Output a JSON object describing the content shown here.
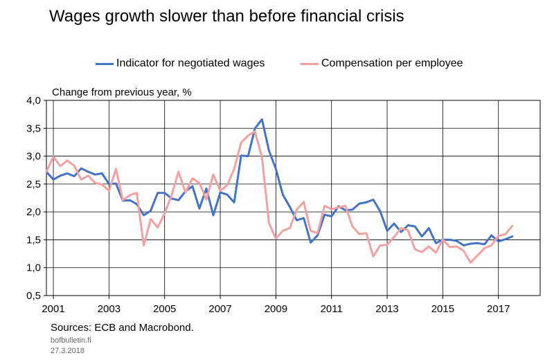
{
  "title": "Wages growth slower than before financial crisis",
  "source": "Sources: ECB and Macrobond.",
  "site": "bofbulletin.fi",
  "date": "27.3.2018",
  "chart_data": {
    "type": "line",
    "title": "Wages growth slower than before financial crisis",
    "ylabel": "Change from previous year, %",
    "xlabel": "",
    "ylim": [
      0.5,
      4.0
    ],
    "xlim": [
      2000.75,
      2018.5
    ],
    "y_ticks": [
      "0,5",
      "1,0",
      "1,5",
      "2,0",
      "2,5",
      "3,0",
      "3,5",
      "4,0"
    ],
    "x_ticks": [
      "2001",
      "2003",
      "2005",
      "2007",
      "2009",
      "2011",
      "2013",
      "2015",
      "2017"
    ],
    "grid": true,
    "legend_position": "top",
    "series": [
      {
        "name": "Indicator for negotiated wages",
        "color": "#4472C4",
        "x": [
          2000.75,
          2001,
          2001.25,
          2001.5,
          2001.75,
          2002,
          2002.25,
          2002.5,
          2002.75,
          2003,
          2003.25,
          2003.5,
          2003.75,
          2004,
          2004.25,
          2004.5,
          2004.75,
          2005,
          2005.25,
          2005.5,
          2005.75,
          2006,
          2006.25,
          2006.5,
          2006.75,
          2007,
          2007.25,
          2007.5,
          2007.75,
          2008,
          2008.25,
          2008.5,
          2008.75,
          2009,
          2009.25,
          2009.5,
          2009.75,
          2010,
          2010.25,
          2010.5,
          2010.75,
          2011,
          2011.25,
          2011.5,
          2011.75,
          2012,
          2012.25,
          2012.5,
          2012.75,
          2013,
          2013.25,
          2013.5,
          2013.75,
          2014,
          2014.25,
          2014.5,
          2014.75,
          2015,
          2015.25,
          2015.5,
          2015.75,
          2016,
          2016.25,
          2016.5,
          2016.75,
          2017,
          2017.25,
          2017.5
        ],
        "y": [
          2.72,
          2.58,
          2.65,
          2.69,
          2.64,
          2.78,
          2.72,
          2.67,
          2.69,
          2.5,
          2.51,
          2.2,
          2.21,
          2.14,
          1.94,
          2.02,
          2.34,
          2.34,
          2.24,
          2.21,
          2.37,
          2.46,
          2.06,
          2.42,
          1.94,
          2.35,
          2.31,
          2.17,
          3.01,
          3.0,
          3.5,
          3.66,
          3.1,
          2.77,
          2.31,
          2.09,
          1.85,
          1.89,
          1.45,
          1.58,
          1.95,
          1.92,
          2.1,
          2.03,
          2.04,
          2.15,
          2.17,
          2.22,
          2.01,
          1.66,
          1.79,
          1.64,
          1.76,
          1.74,
          1.56,
          1.71,
          1.44,
          1.5,
          1.5,
          1.48,
          1.4,
          1.43,
          1.44,
          1.42,
          1.58,
          1.47,
          1.51,
          1.56
        ]
      },
      {
        "name": "Compensation per employee",
        "color": "#F4A0A0",
        "x": [
          2000.75,
          2001,
          2001.25,
          2001.5,
          2001.75,
          2002,
          2002.25,
          2002.5,
          2002.75,
          2003,
          2003.25,
          2003.5,
          2003.75,
          2004,
          2004.25,
          2004.5,
          2004.75,
          2005,
          2005.25,
          2005.5,
          2005.75,
          2006,
          2006.25,
          2006.5,
          2006.75,
          2007,
          2007.25,
          2007.5,
          2007.75,
          2008,
          2008.25,
          2008.5,
          2008.75,
          2009,
          2009.25,
          2009.5,
          2009.75,
          2010,
          2010.25,
          2010.5,
          2010.75,
          2011,
          2011.25,
          2011.5,
          2011.75,
          2012,
          2012.25,
          2012.5,
          2012.75,
          2013,
          2013.25,
          2013.5,
          2013.75,
          2014,
          2014.25,
          2014.5,
          2014.75,
          2015,
          2015.25,
          2015.5,
          2015.75,
          2016,
          2016.25,
          2016.5,
          2016.75,
          2017,
          2017.25,
          2017.5
        ],
        "y": [
          2.72,
          2.99,
          2.82,
          2.92,
          2.83,
          2.58,
          2.65,
          2.52,
          2.49,
          2.38,
          2.77,
          2.21,
          2.3,
          2.34,
          1.4,
          1.87,
          1.72,
          1.97,
          2.3,
          2.72,
          2.35,
          2.6,
          2.52,
          2.22,
          2.67,
          2.38,
          2.48,
          2.77,
          3.24,
          3.37,
          3.44,
          2.98,
          1.8,
          1.52,
          1.66,
          1.71,
          2.04,
          2.18,
          1.66,
          1.62,
          2.11,
          2.05,
          2.08,
          2.11,
          1.74,
          1.6,
          1.62,
          1.2,
          1.4,
          1.41,
          1.55,
          1.71,
          1.67,
          1.33,
          1.28,
          1.38,
          1.27,
          1.5,
          1.37,
          1.38,
          1.3,
          1.09,
          1.22,
          1.35,
          1.4,
          1.57,
          1.6,
          1.75
        ]
      }
    ]
  }
}
